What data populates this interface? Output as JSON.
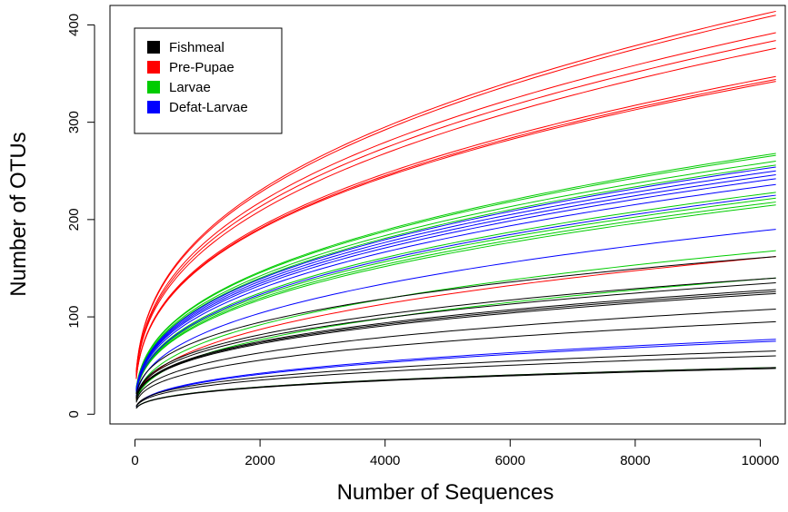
{
  "chart_data": {
    "type": "line",
    "title": "",
    "xlabel": "Number of Sequences",
    "ylabel": "Number of OTUs",
    "xlim": [
      -400,
      10400
    ],
    "ylim": [
      -10,
      420
    ],
    "x_ticks": [
      0,
      2000,
      4000,
      6000,
      8000,
      10000
    ],
    "y_ticks": [
      0,
      100,
      200,
      300,
      400
    ],
    "x_max_sample": 10250,
    "grid": false,
    "legend_position": "top-left",
    "legend": [
      {
        "name": "Fishmeal",
        "color": "#000000"
      },
      {
        "name": "Pre-Pupae",
        "color": "#FF0000"
      },
      {
        "name": "Larvae",
        "color": "#00CC00"
      },
      {
        "name": "Defat-Larvae",
        "color": "#0000FF"
      }
    ],
    "curve_model": "y = y_end * (x / x_end)^exponent",
    "series": [
      {
        "group": "Pre-Pupae",
        "color": "#FF0000",
        "y_end": [
          414,
          410,
          392,
          384,
          376,
          347,
          344,
          342
        ],
        "exponent": 0.36
      },
      {
        "group": "Pre-Pupae",
        "color": "#FF0000",
        "y_end": [
          162
        ],
        "exponent": 0.38
      },
      {
        "group": "Larvae",
        "color": "#00CC00",
        "y_end": [
          268,
          266,
          260,
          256,
          228,
          222,
          218,
          215,
          168,
          140
        ],
        "exponent": 0.37
      },
      {
        "group": "Larvae",
        "color": "#00CC00",
        "y_end": [
          48
        ],
        "exponent": 0.33
      },
      {
        "group": "Defat-Larvae",
        "color": "#0000FF",
        "y_end": [
          254,
          250,
          246,
          242,
          236,
          225,
          190,
          77,
          75
        ],
        "exponent": 0.37
      },
      {
        "group": "Fishmeal",
        "color": "#000000",
        "y_end": [
          162,
          140,
          135,
          128,
          126,
          124,
          108,
          95,
          65,
          60,
          48,
          47
        ],
        "exponent": 0.33
      }
    ]
  }
}
